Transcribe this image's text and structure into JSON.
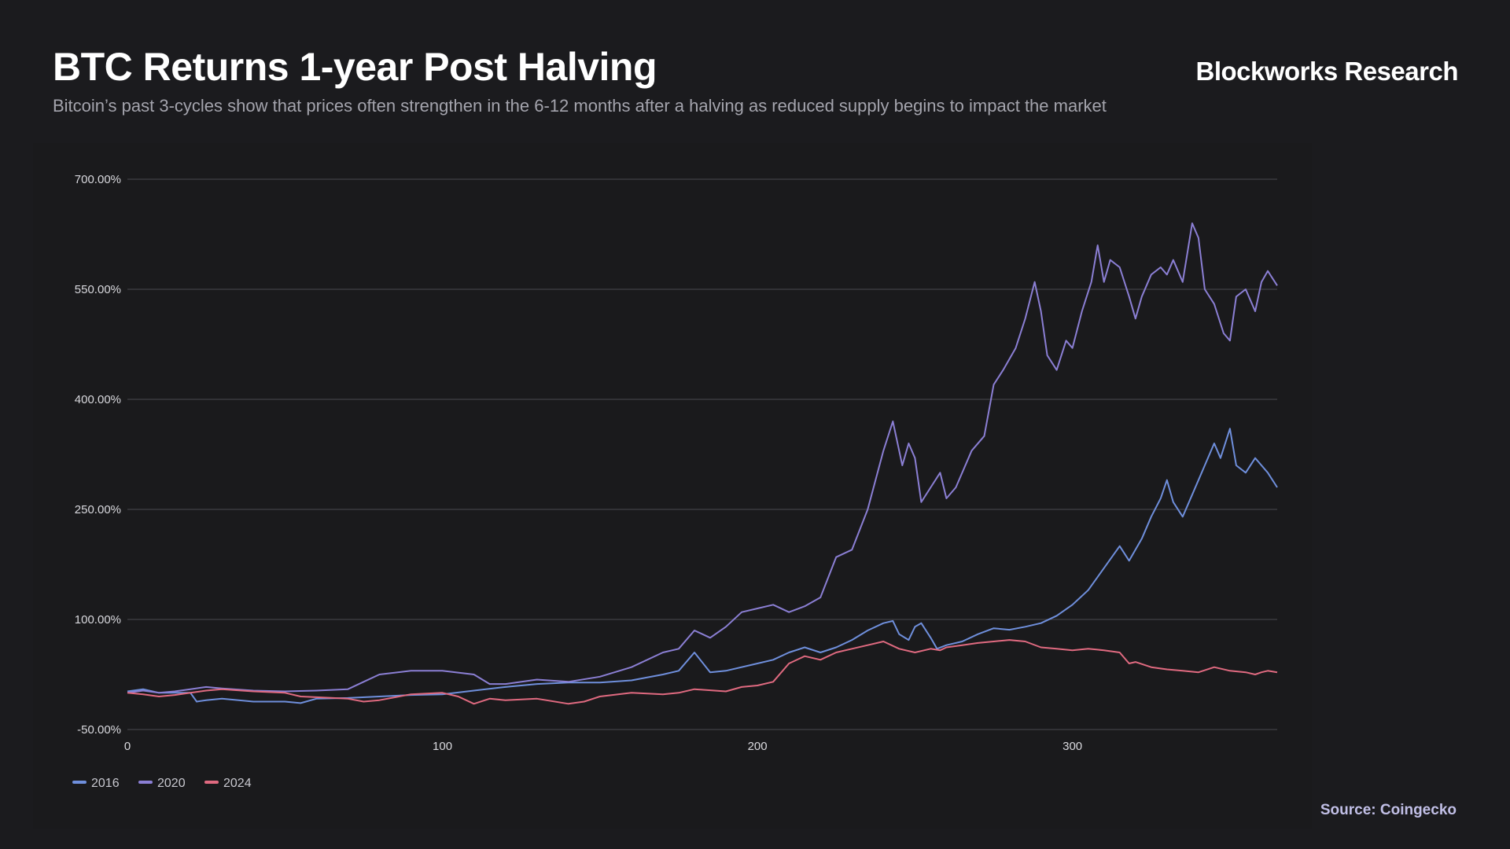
{
  "header": {
    "title": "BTC Returns 1-year Post Halving",
    "subtitle": "Bitcoin’s past 3-cycles show that prices often strengthen in the 6-12 months after a halving as reduced supply begins to impact the market",
    "brand": "Blockworks Research"
  },
  "footer": {
    "source": "Source: Coingecko"
  },
  "chart_data": {
    "type": "line",
    "title": "BTC Returns 1-year Post Halving",
    "xlabel": "",
    "ylabel": "",
    "xlim": [
      0,
      365
    ],
    "ylim": [
      -50,
      700
    ],
    "x_ticks": [
      0,
      100,
      200,
      300
    ],
    "y_ticks": [
      -50,
      100,
      250,
      400,
      550,
      700
    ],
    "y_tick_labels": [
      "-50.00%",
      "100.00%",
      "250.00%",
      "400.00%",
      "550.00%",
      "700.00%"
    ],
    "grid": true,
    "legend_position": "bottom-left",
    "series": [
      {
        "name": "2016",
        "color": "#6f8fdc",
        "points": [
          [
            0,
            2
          ],
          [
            5,
            5
          ],
          [
            10,
            0
          ],
          [
            15,
            0
          ],
          [
            20,
            0
          ],
          [
            22,
            -12
          ],
          [
            25,
            -10
          ],
          [
            30,
            -8
          ],
          [
            40,
            -12
          ],
          [
            50,
            -12
          ],
          [
            55,
            -14
          ],
          [
            60,
            -8
          ],
          [
            70,
            -7
          ],
          [
            80,
            -5
          ],
          [
            90,
            -3
          ],
          [
            100,
            -2
          ],
          [
            110,
            3
          ],
          [
            120,
            8
          ],
          [
            130,
            12
          ],
          [
            140,
            14
          ],
          [
            150,
            14
          ],
          [
            160,
            17
          ],
          [
            170,
            25
          ],
          [
            175,
            30
          ],
          [
            180,
            55
          ],
          [
            185,
            28
          ],
          [
            190,
            30
          ],
          [
            200,
            40
          ],
          [
            205,
            45
          ],
          [
            210,
            55
          ],
          [
            215,
            62
          ],
          [
            220,
            55
          ],
          [
            225,
            62
          ],
          [
            230,
            72
          ],
          [
            235,
            85
          ],
          [
            240,
            95
          ],
          [
            243,
            98
          ],
          [
            245,
            80
          ],
          [
            248,
            72
          ],
          [
            250,
            90
          ],
          [
            252,
            95
          ],
          [
            255,
            75
          ],
          [
            257,
            60
          ],
          [
            260,
            65
          ],
          [
            265,
            70
          ],
          [
            270,
            80
          ],
          [
            275,
            88
          ],
          [
            280,
            86
          ],
          [
            285,
            90
          ],
          [
            290,
            95
          ],
          [
            295,
            105
          ],
          [
            300,
            120
          ],
          [
            305,
            140
          ],
          [
            310,
            170
          ],
          [
            315,
            200
          ],
          [
            318,
            180
          ],
          [
            322,
            210
          ],
          [
            325,
            240
          ],
          [
            328,
            265
          ],
          [
            330,
            290
          ],
          [
            332,
            260
          ],
          [
            335,
            240
          ],
          [
            338,
            270
          ],
          [
            340,
            290
          ],
          [
            342,
            310
          ],
          [
            345,
            340
          ],
          [
            347,
            320
          ],
          [
            350,
            360
          ],
          [
            352,
            310
          ],
          [
            355,
            300
          ],
          [
            358,
            320
          ],
          [
            360,
            310
          ],
          [
            362,
            300
          ],
          [
            365,
            280
          ]
        ]
      },
      {
        "name": "2020",
        "color": "#8b7fd4",
        "points": [
          [
            0,
            0
          ],
          [
            5,
            3
          ],
          [
            10,
            0
          ],
          [
            15,
            2
          ],
          [
            20,
            5
          ],
          [
            25,
            8
          ],
          [
            30,
            6
          ],
          [
            40,
            3
          ],
          [
            50,
            2
          ],
          [
            60,
            3
          ],
          [
            70,
            5
          ],
          [
            75,
            15
          ],
          [
            80,
            25
          ],
          [
            90,
            30
          ],
          [
            100,
            30
          ],
          [
            110,
            25
          ],
          [
            115,
            12
          ],
          [
            120,
            12
          ],
          [
            130,
            18
          ],
          [
            140,
            15
          ],
          [
            150,
            22
          ],
          [
            160,
            35
          ],
          [
            170,
            55
          ],
          [
            175,
            60
          ],
          [
            180,
            85
          ],
          [
            185,
            75
          ],
          [
            190,
            90
          ],
          [
            195,
            110
          ],
          [
            200,
            115
          ],
          [
            205,
            120
          ],
          [
            210,
            110
          ],
          [
            215,
            118
          ],
          [
            220,
            130
          ],
          [
            225,
            185
          ],
          [
            230,
            195
          ],
          [
            235,
            250
          ],
          [
            240,
            330
          ],
          [
            243,
            370
          ],
          [
            246,
            310
          ],
          [
            248,
            340
          ],
          [
            250,
            320
          ],
          [
            252,
            260
          ],
          [
            255,
            280
          ],
          [
            258,
            300
          ],
          [
            260,
            265
          ],
          [
            263,
            280
          ],
          [
            268,
            330
          ],
          [
            272,
            350
          ],
          [
            275,
            420
          ],
          [
            278,
            440
          ],
          [
            282,
            470
          ],
          [
            285,
            510
          ],
          [
            288,
            560
          ],
          [
            290,
            520
          ],
          [
            292,
            460
          ],
          [
            295,
            440
          ],
          [
            298,
            480
          ],
          [
            300,
            470
          ],
          [
            303,
            520
          ],
          [
            306,
            560
          ],
          [
            308,
            610
          ],
          [
            310,
            560
          ],
          [
            312,
            590
          ],
          [
            315,
            580
          ],
          [
            318,
            540
          ],
          [
            320,
            510
          ],
          [
            322,
            540
          ],
          [
            325,
            570
          ],
          [
            328,
            580
          ],
          [
            330,
            570
          ],
          [
            332,
            590
          ],
          [
            335,
            560
          ],
          [
            338,
            640
          ],
          [
            340,
            620
          ],
          [
            342,
            550
          ],
          [
            345,
            530
          ],
          [
            348,
            490
          ],
          [
            350,
            480
          ],
          [
            352,
            540
          ],
          [
            355,
            550
          ],
          [
            358,
            520
          ],
          [
            360,
            560
          ],
          [
            362,
            575
          ],
          [
            365,
            555
          ]
        ]
      },
      {
        "name": "2024",
        "color": "#e06a80",
        "points": [
          [
            0,
            0
          ],
          [
            5,
            -2
          ],
          [
            10,
            -5
          ],
          [
            15,
            -3
          ],
          [
            20,
            0
          ],
          [
            25,
            3
          ],
          [
            30,
            5
          ],
          [
            40,
            2
          ],
          [
            50,
            0
          ],
          [
            55,
            -5
          ],
          [
            60,
            -6
          ],
          [
            70,
            -8
          ],
          [
            75,
            -12
          ],
          [
            80,
            -10
          ],
          [
            90,
            -2
          ],
          [
            100,
            0
          ],
          [
            105,
            -5
          ],
          [
            110,
            -15
          ],
          [
            115,
            -8
          ],
          [
            120,
            -10
          ],
          [
            130,
            -8
          ],
          [
            140,
            -15
          ],
          [
            145,
            -12
          ],
          [
            150,
            -5
          ],
          [
            160,
            0
          ],
          [
            170,
            -2
          ],
          [
            175,
            0
          ],
          [
            180,
            5
          ],
          [
            190,
            2
          ],
          [
            195,
            8
          ],
          [
            200,
            10
          ],
          [
            205,
            15
          ],
          [
            210,
            40
          ],
          [
            215,
            50
          ],
          [
            220,
            45
          ],
          [
            225,
            55
          ],
          [
            230,
            60
          ],
          [
            235,
            65
          ],
          [
            240,
            70
          ],
          [
            245,
            60
          ],
          [
            250,
            55
          ],
          [
            255,
            60
          ],
          [
            258,
            58
          ],
          [
            260,
            62
          ],
          [
            265,
            65
          ],
          [
            270,
            68
          ],
          [
            275,
            70
          ],
          [
            280,
            72
          ],
          [
            285,
            70
          ],
          [
            290,
            62
          ],
          [
            295,
            60
          ],
          [
            300,
            58
          ],
          [
            305,
            60
          ],
          [
            310,
            58
          ],
          [
            315,
            55
          ],
          [
            318,
            40
          ],
          [
            320,
            42
          ],
          [
            325,
            35
          ],
          [
            330,
            32
          ],
          [
            335,
            30
          ],
          [
            340,
            28
          ],
          [
            345,
            35
          ],
          [
            350,
            30
          ],
          [
            355,
            28
          ],
          [
            358,
            25
          ],
          [
            360,
            28
          ],
          [
            362,
            30
          ],
          [
            365,
            28
          ]
        ]
      }
    ]
  }
}
